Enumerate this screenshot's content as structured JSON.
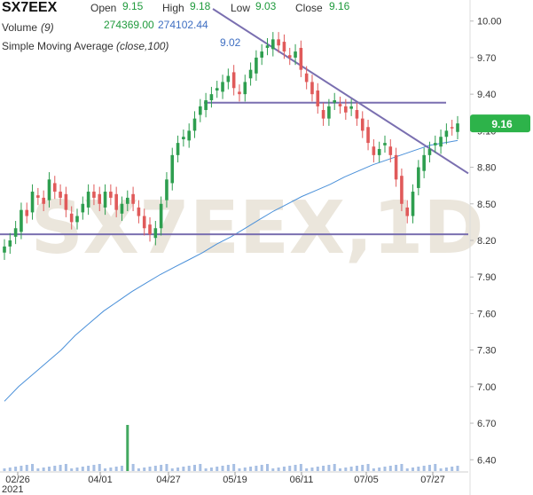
{
  "header": {
    "symbol": "SX7EEX",
    "open_label": "Open",
    "open_value": "9.15",
    "high_label": "High",
    "high_value": "9.18",
    "low_label": "Low",
    "low_value": "9.03",
    "close_label": "Close",
    "close_value": "9.16",
    "volume_label": "Volume",
    "volume_period": "(9)",
    "volume_value_1": "274369.00",
    "volume_value_2": "274102.44",
    "sma_label": "Simple Moving Average",
    "sma_params": "(close,100)",
    "sma_value": "9.02"
  },
  "watermark": "SX7EEX,1D",
  "last_price_badge": "9.16",
  "colors": {
    "up": "#2e9e4f",
    "down": "#e05a5a",
    "sma": "#4a90d9",
    "trendline": "#7a6fb0",
    "badge": "#2db34a",
    "volume": "#9db8e0"
  },
  "chart_data": {
    "type": "candlestick",
    "yticks": [
      "10.00",
      "9.70",
      "9.40",
      "9.10",
      "8.80",
      "8.50",
      "8.20",
      "7.90",
      "7.60",
      "7.30",
      "7.00",
      "6.70",
      "6.40"
    ],
    "ylim": [
      6.3,
      10.1
    ],
    "xticks": [
      "02/26",
      "04/01",
      "04/27",
      "05/19",
      "06/11",
      "07/05",
      "07/27"
    ],
    "x_year_label": "2021",
    "last_close": 9.16,
    "sma_last": 9.02,
    "horizontal_lines": [
      9.33,
      8.25
    ],
    "descending_trendline": [
      [
        0,
        10.1
      ],
      [
        0.99,
        8.75
      ]
    ],
    "sma_series": [
      6.88,
      7.0,
      7.1,
      7.2,
      7.3,
      7.42,
      7.52,
      7.62,
      7.7,
      7.78,
      7.85,
      7.92,
      7.98,
      8.04,
      8.1,
      8.17,
      8.23,
      8.3,
      8.37,
      8.44,
      8.5,
      8.56,
      8.61,
      8.66,
      8.72,
      8.77,
      8.82,
      8.86,
      8.9,
      8.94,
      8.98,
      9.0,
      9.02
    ],
    "closes": [
      8.15,
      8.2,
      8.3,
      8.45,
      8.4,
      8.6,
      8.55,
      8.5,
      8.7,
      8.6,
      8.55,
      8.45,
      8.35,
      8.4,
      8.5,
      8.6,
      8.55,
      8.5,
      8.6,
      8.55,
      8.45,
      8.5,
      8.55,
      8.5,
      8.4,
      8.3,
      8.25,
      8.3,
      8.5,
      8.7,
      8.9,
      9.0,
      9.05,
      9.1,
      9.2,
      9.3,
      9.35,
      9.4,
      9.45,
      9.5,
      9.55,
      9.45,
      9.4,
      9.5,
      9.6,
      9.7,
      9.75,
      9.8,
      9.85,
      9.8,
      9.75,
      9.7,
      9.75,
      9.6,
      9.5,
      9.4,
      9.3,
      9.2,
      9.3,
      9.35,
      9.3,
      9.25,
      9.3,
      9.2,
      9.1,
      9.0,
      8.9,
      8.95,
      9.0,
      8.9,
      8.7,
      8.5,
      8.4,
      8.6,
      8.8,
      8.9,
      8.95,
      9.0,
      9.05,
      9.1,
      9.12,
      9.16
    ],
    "volume_spike_index": 22
  }
}
